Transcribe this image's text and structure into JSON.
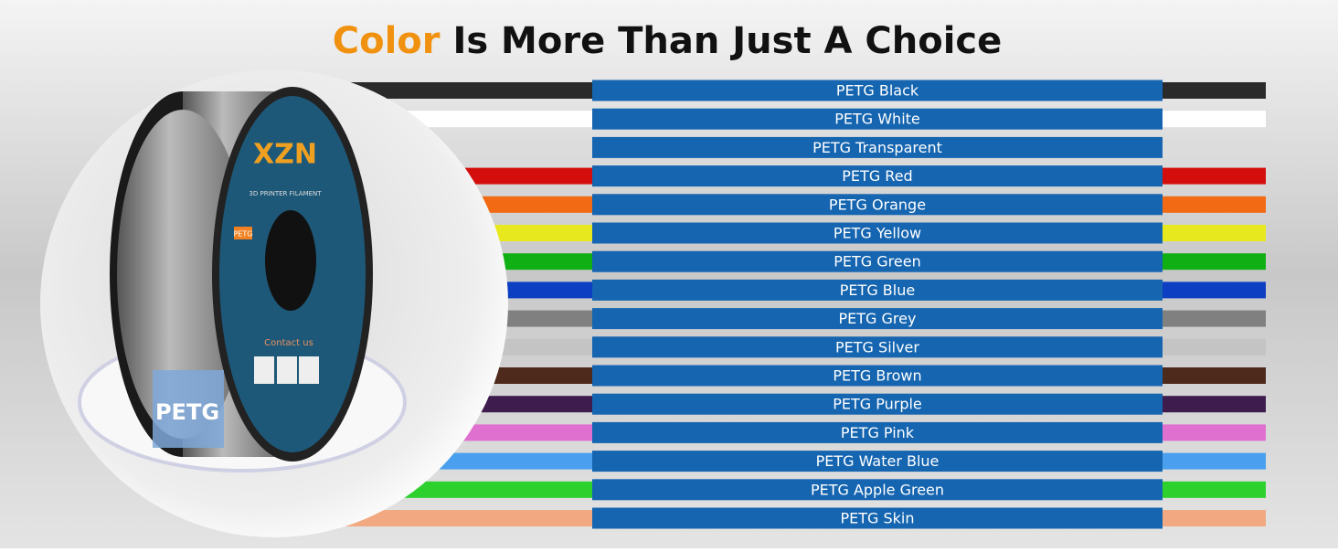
{
  "header": {
    "title_highlight": "Color",
    "title_rest": "Is More Than Just A Choice"
  },
  "product": {
    "brand": "XZN",
    "subtitle": "3D PRINTER FILAMENT",
    "badge": "PETG",
    "contact": "Contact us",
    "label": "PETG"
  },
  "colors": [
    {
      "label": "PETG  Black",
      "color": "#2a2a2a"
    },
    {
      "label": "PETG  White",
      "color": "#ffffff"
    },
    {
      "label": "PETG  Transparent",
      "color": "#dcdcdc"
    },
    {
      "label": "PETG  Red",
      "color": "#d40d0d"
    },
    {
      "label": "PETG  Orange",
      "color": "#f26a13"
    },
    {
      "label": "PETG  Yellow",
      "color": "#e8e81e"
    },
    {
      "label": "PETG  Green",
      "color": "#10b014"
    },
    {
      "label": "PETG  Blue",
      "color": "#0d3fc2"
    },
    {
      "label": "PETG  Grey",
      "color": "#808080"
    },
    {
      "label": "PETG  Silver",
      "color": "#c4c4c4"
    },
    {
      "label": "PETG  Brown",
      "color": "#4e2a1c"
    },
    {
      "label": "PETG Purple",
      "color": "#3e1c4e"
    },
    {
      "label": "PETG Pink",
      "color": "#e070d0"
    },
    {
      "label": "PETG Water Blue",
      "color": "#4aa0ee"
    },
    {
      "label": "PETG Apple Green",
      "color": "#2ed02e"
    },
    {
      "label": "PETG Skin",
      "color": "#f2a880"
    }
  ]
}
